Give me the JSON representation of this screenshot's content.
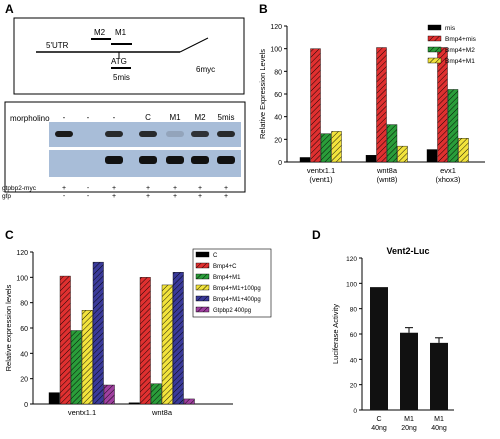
{
  "panels": {
    "a": "A",
    "b": "B",
    "c": "C",
    "d": "D"
  },
  "panel_a": {
    "schematic": {
      "utr": "5'UTR",
      "m2": "M2",
      "m1": "M1",
      "atg": "ATG",
      "mis5": "5mis",
      "myc": "6myc"
    },
    "blot": {
      "morpholino_label": "morpholino",
      "morpholino_values": [
        "-",
        "-",
        "-",
        "C",
        "M1",
        "M2",
        "5mis"
      ],
      "rows": [
        {
          "label": "gtpbp2-myc",
          "values": [
            "+",
            "-",
            "+",
            "+",
            "+",
            "+",
            "+"
          ]
        },
        {
          "label": "gfp",
          "values": [
            "-",
            "-",
            "+",
            "+",
            "+",
            "+",
            "+"
          ]
        }
      ],
      "top_band_intensity": [
        1,
        0,
        0.9,
        0.9,
        0.15,
        0.85,
        0.9
      ],
      "bottom_band_intensity": [
        0,
        0,
        1,
        1,
        1,
        1,
        1
      ]
    }
  },
  "chart_data": [
    {
      "panel": "B",
      "type": "bar",
      "title": "",
      "ylabel": "Relative Expression Levels",
      "xlabel": "",
      "ylim": [
        0,
        120
      ],
      "yticks": [
        0,
        20,
        40,
        60,
        80,
        100,
        120
      ],
      "categories": [
        "ventx1.1\n(vent1)",
        "wnt8a\n(wnt8)",
        "evx1\n(xhox3)"
      ],
      "series": [
        {
          "name": "mis",
          "color": "#000000",
          "pattern": "solid",
          "values": [
            4,
            6,
            11
          ]
        },
        {
          "name": "Bmp4+mis",
          "color": "#e03030",
          "pattern": "hatch",
          "values": [
            100,
            101,
            101
          ]
        },
        {
          "name": "Bmp4+M2",
          "color": "#2a9d3a",
          "pattern": "hatch",
          "values": [
            25,
            33,
            64
          ]
        },
        {
          "name": "Bmp4+M1",
          "color": "#f2e33c",
          "pattern": "hatch",
          "values": [
            27,
            14,
            21
          ]
        }
      ],
      "legend": "top-right"
    },
    {
      "panel": "C",
      "type": "bar",
      "title": "",
      "ylabel": "Relative expression levels",
      "xlabel": "",
      "ylim": [
        0,
        120
      ],
      "yticks": [
        0,
        20,
        40,
        60,
        80,
        100,
        120
      ],
      "categories": [
        "ventx1.1",
        "wnt8a"
      ],
      "series": [
        {
          "name": "C",
          "color": "#000000",
          "pattern": "solid",
          "values": [
            9,
            1
          ]
        },
        {
          "name": "Bmp4+C",
          "color": "#e03030",
          "pattern": "hatch",
          "values": [
            101,
            100
          ]
        },
        {
          "name": "Bmp4+M1",
          "color": "#2a9d3a",
          "pattern": "hatch",
          "values": [
            58,
            16
          ]
        },
        {
          "name": "Bmp4+M1+100pg",
          "color": "#f2e33c",
          "pattern": "hatch",
          "values": [
            74,
            94
          ]
        },
        {
          "name": "Bmp4+M1+400pg",
          "color": "#3a3a9a",
          "pattern": "hatch",
          "values": [
            112,
            104
          ]
        },
        {
          "name": "Gtpbp2 400pg",
          "color": "#a040a0",
          "pattern": "hatch",
          "values": [
            15,
            4
          ]
        }
      ],
      "legend": "top-right"
    },
    {
      "panel": "D",
      "type": "bar",
      "title": "Vent2-Luc",
      "ylabel": "Luciferase Activity",
      "xlabel": "",
      "ylim": [
        0,
        120
      ],
      "yticks": [
        0,
        20,
        40,
        60,
        80,
        100,
        120
      ],
      "categories": [
        "C\n40ng",
        "M1\n20ng",
        "M1\n40ng"
      ],
      "values": [
        97,
        61,
        53
      ],
      "errors": [
        0,
        4,
        4
      ],
      "color": "#111111"
    }
  ]
}
